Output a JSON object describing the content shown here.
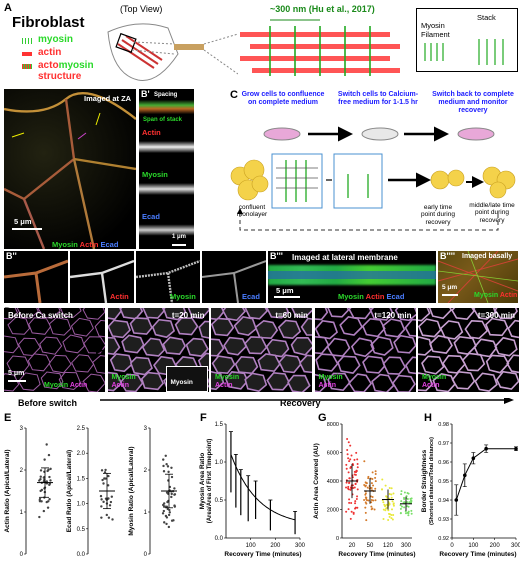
{
  "panelA": {
    "letter": "A",
    "title": "Fibroblast",
    "top_view": "(Top View)",
    "legend_myosin": "myosin",
    "legend_actin": "actin",
    "legend_acto": "acto",
    "legend_acto2": "myosin",
    "legend_structure": "structure",
    "spacing_label": "~300 nm (Hu et al., 2017)",
    "box_filament": "Myosin Filament",
    "box_stack": "Stack"
  },
  "panelB": {
    "letter": "B",
    "imaged": "Imaged at ZA",
    "scale": "5 μm",
    "ch_myosin": "Myosin",
    "ch_actin": "Actin",
    "ch_ecad": "Ecad"
  },
  "panelB1": {
    "letter": "B'",
    "spacing": "Spacing",
    "span": "Span of stack",
    "actin": "Actin",
    "myosin": "Myosin",
    "ecad": "Ecad",
    "scale": "1 μm"
  },
  "panelB2": {
    "letter": "B''",
    "actin": "Actin",
    "myosin": "Myosin",
    "ecad": "Ecad"
  },
  "panelB3": {
    "letter": "B'''",
    "imaged": "Imaged at lateral membrane",
    "scale": "5 μm",
    "myosin": "Myosin",
    "actin": "Actin",
    "ecad": "Ecad"
  },
  "panelB4": {
    "letter": "B''''",
    "imaged": "Imaged basally",
    "scale": "5 μm",
    "myosin": "Myosin",
    "actin": "Actin"
  },
  "panelC": {
    "letter": "C",
    "step1": "Grow cells to confluence on complete medium",
    "step2": "Switch cells to Calcium-free medium for 1-1.5 hr",
    "step3": "Switch back to complete medium and monitor recovery",
    "confluent": "confluent monolayer",
    "early": "early time point during recovery",
    "late": "middle/late time point during recovery"
  },
  "panelD": {
    "letter": "D",
    "frames": [
      "Before Ca switch",
      "t=20 min",
      "t=60 min",
      "t=120 min",
      "t=300 min"
    ],
    "scale": "5 μm",
    "myosin": "Myosin",
    "actin": "Actin",
    "inset": "Myosin",
    "before": "Before switch",
    "recovery": "Recovery"
  },
  "panelE": {
    "letter": "E",
    "actin_ylabel": "Actin Ratio (Apical/Lateral)",
    "ecad_ylabel": "Ecad Ratio (Apical/Lateral)",
    "myosin_ylabel": "Myosin Ratio (Apical/Lateral)"
  },
  "panelF": {
    "letter": "F",
    "ylabel": "Myosin Area Ratio (Area/Area of First Timepoint)",
    "xlabel": "Recovery Time (minutes)"
  },
  "panelG": {
    "letter": "G",
    "ylabel": "Actin Area Covered (AU)",
    "xlabel": "Recovery Time (minutes)"
  },
  "panelH": {
    "letter": "H",
    "ylabel": "Border Straightness (Shortest distance/Total distance)",
    "xlabel": "Recovery Time (minutes)"
  },
  "chart_data": [
    {
      "id": "E-actin",
      "type": "scatter",
      "ylabel": "Actin Ratio (Apical/Lateral)",
      "ylim": [
        0,
        3
      ],
      "yticks": [
        "0",
        "1",
        "2",
        "3"
      ],
      "mean": 1.7,
      "sd": 0.35,
      "n": 40
    },
    {
      "id": "E-ecad",
      "type": "scatter",
      "ylabel": "Ecad Ratio (Apical/Lateral)",
      "ylim": [
        0,
        2.5
      ],
      "yticks": [
        "0.0",
        "0.5",
        "1.0",
        "1.5",
        "2.0",
        "2.5"
      ],
      "mean": 1.25,
      "sd": 0.35,
      "n": 25
    },
    {
      "id": "E-myosin",
      "type": "scatter",
      "ylabel": "Myosin Ratio (Apical/Lateral)",
      "ylim": [
        0,
        3
      ],
      "yticks": [
        "0",
        "1",
        "2",
        "3"
      ],
      "mean": 1.5,
      "sd": 0.4,
      "n": 45
    },
    {
      "id": "F",
      "type": "line",
      "xlabel": "Recovery Time (minutes)",
      "ylabel": "Myosin Area Ratio (Area/Area of First Timepoint)",
      "xlim": [
        0,
        300
      ],
      "ylim": [
        0,
        1.5
      ],
      "xticks": [
        "100",
        "200",
        "300"
      ],
      "yticks": [
        "0.0",
        "0.5",
        "1.0",
        "1.5"
      ],
      "x": [
        20,
        40,
        60,
        90,
        120,
        180,
        280
      ],
      "y": [
        1.0,
        0.75,
        0.6,
        0.52,
        0.5,
        0.3,
        0.2
      ],
      "err": [
        0.4,
        0.35,
        0.3,
        0.3,
        0.25,
        0.2,
        0.15
      ]
    },
    {
      "id": "G",
      "type": "scatter",
      "xlabel": "Recovery Time (minutes)",
      "ylabel": "Actin Area Covered (AU)",
      "ylim": [
        0,
        8000
      ],
      "categories": [
        "20",
        "50",
        "120",
        "300"
      ],
      "yticks": [
        "0",
        "2000",
        "4000",
        "6000",
        "8000"
      ],
      "means": [
        4000,
        3300,
        2700,
        2400
      ],
      "sds": [
        1200,
        900,
        700,
        500
      ],
      "colors": [
        "#e33",
        "#d47a2a",
        "#e8e83a",
        "#7adf6a"
      ]
    },
    {
      "id": "H",
      "type": "line",
      "xlabel": "Recovery Time (minutes)",
      "ylabel": "Border Straightness (Shortest distance/Total distance)",
      "xlim": [
        0,
        300
      ],
      "ylim": [
        0.92,
        0.98
      ],
      "xticks": [
        "0",
        "100",
        "200",
        "300"
      ],
      "yticks": [
        "0.92",
        "0.93",
        "0.94",
        "0.95",
        "0.96",
        "0.97",
        "0.98"
      ],
      "x": [
        20,
        60,
        100,
        160,
        300
      ],
      "y": [
        0.94,
        0.953,
        0.962,
        0.967,
        0.967
      ],
      "err": [
        0.008,
        0.006,
        0.003,
        0.002,
        0.001
      ]
    }
  ]
}
